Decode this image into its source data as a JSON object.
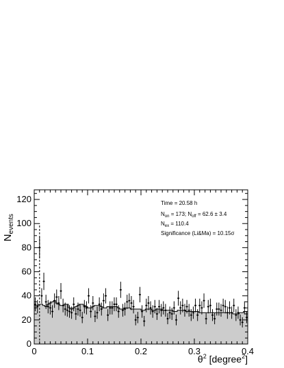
{
  "chart_data": {
    "type": "histogram",
    "title": "",
    "xlabel": {
      "base": "θ",
      "sup": "2",
      "mid": " [degree",
      "sup2": "2",
      "end": "]"
    },
    "ylabel": {
      "base": "N",
      "sub": "events"
    },
    "xlim": [
      0,
      0.4
    ],
    "ylim": [
      0,
      128
    ],
    "x_ticks": [
      0,
      0.1,
      0.2,
      0.3,
      0.4
    ],
    "x_tick_labels": [
      "0",
      "0.1",
      "0.2",
      "0.3",
      "0.4"
    ],
    "y_ticks": [
      0,
      20,
      40,
      60,
      80,
      100,
      120
    ],
    "y_tick_labels": [
      "0",
      "20",
      "40",
      "60",
      "80",
      "100",
      "120"
    ],
    "cut_value": 0.01,
    "bin_width": 0.004,
    "off_counts": [
      32,
      32,
      33,
      33,
      32,
      31,
      33,
      34,
      35,
      36,
      34,
      33,
      32,
      32,
      33,
      33,
      30,
      29,
      30,
      31,
      32,
      33,
      33,
      32,
      31,
      30,
      30,
      31,
      32,
      32,
      32,
      31,
      30,
      30,
      31,
      31,
      31,
      31,
      31,
      30,
      29,
      29,
      30,
      30,
      30,
      29,
      29,
      29,
      29,
      29,
      28,
      28,
      29,
      29,
      29,
      28,
      28,
      29,
      29,
      29,
      28,
      28,
      28,
      28,
      28,
      27,
      27,
      28,
      28,
      28,
      28,
      27,
      27,
      27,
      27,
      27,
      27,
      26,
      26,
      26,
      26,
      26,
      26,
      26,
      26,
      26,
      26,
      26,
      26,
      26,
      26,
      26,
      26,
      25,
      25,
      25,
      26,
      26,
      27,
      27
    ],
    "on_counts": [
      33,
      31,
      80,
      40,
      52,
      35,
      31,
      30,
      27,
      36,
      39,
      34,
      44,
      32,
      29,
      28,
      27,
      26,
      33,
      25,
      29,
      28,
      22,
      31,
      30,
      40,
      27,
      34,
      23,
      26,
      33,
      29,
      36,
      40,
      24,
      30,
      30,
      33,
      33,
      27,
      45,
      28,
      29,
      35,
      36,
      34,
      31,
      20,
      22,
      41,
      27,
      19,
      32,
      34,
      30,
      27,
      31,
      25,
      31,
      28,
      30,
      28,
      21,
      26,
      25,
      30,
      20,
      38,
      30,
      32,
      28,
      31,
      28,
      24,
      26,
      32,
      24,
      32,
      30,
      36,
      21,
      31,
      32,
      24,
      21,
      29,
      29,
      28,
      32,
      31,
      26,
      30,
      26,
      32,
      24,
      26,
      20,
      18,
      30,
      22
    ],
    "annotations": {
      "time": "Time = 20.58 h",
      "non_label": "N",
      "non_sub": "on",
      "non_value": " = 173; N",
      "noff_sub": "off",
      "noff_value": " = 62.6 ±  3.4",
      "nex_label": "N",
      "nex_sub": "ex",
      "nex_value": " = 110.4",
      "significance": "Significance (Li&Ma) = 10.15σ"
    },
    "colors": {
      "off_fill": "#cccccc",
      "on_points": "#000000",
      "off_line": "#000000",
      "cut_line": "#000000"
    }
  }
}
